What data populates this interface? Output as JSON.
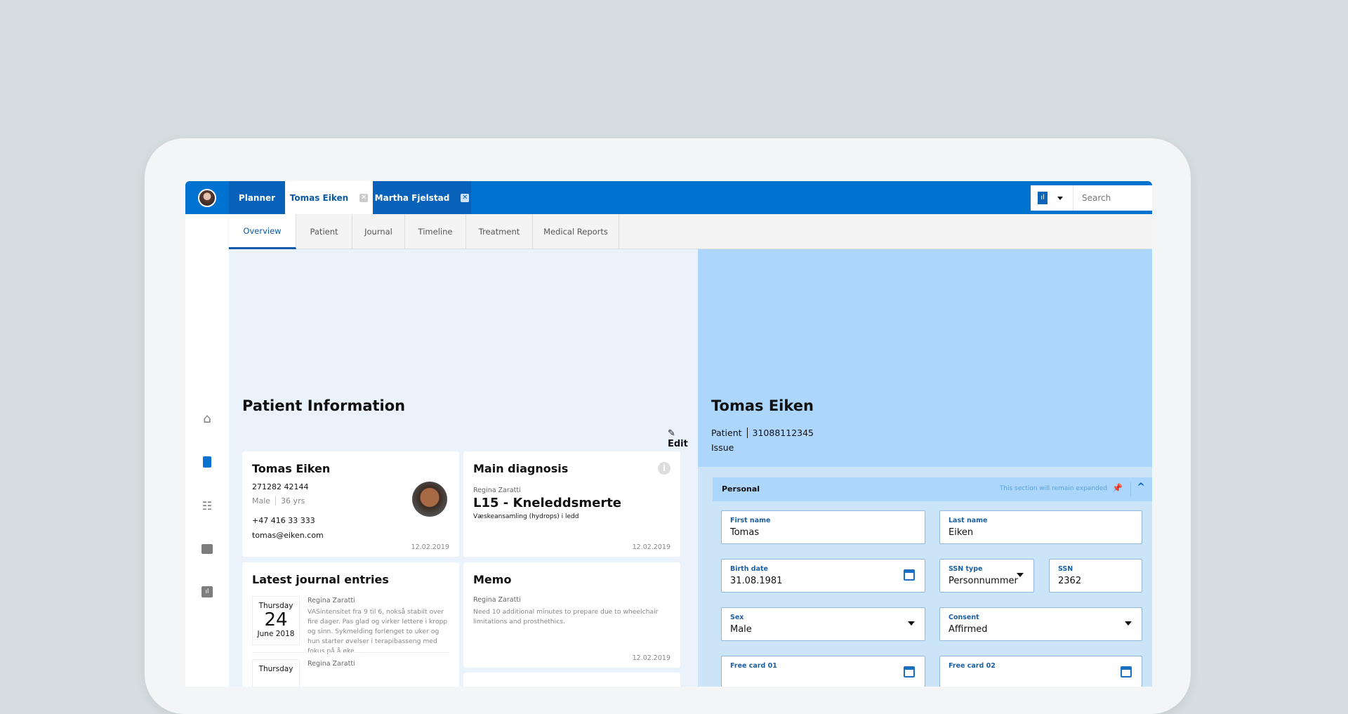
{
  "header": {
    "tabs": [
      {
        "label": "Planner"
      },
      {
        "label": "Tomas Eiken",
        "closable": true
      },
      {
        "label": "Martha Fjelstad",
        "closable": true
      }
    ],
    "search_placeholder": "Search",
    "chart_icon": "bar-chart-icon"
  },
  "subnav": {
    "tabs": [
      "Overview",
      "Patient",
      "Journal",
      "Timeline",
      "Treatment",
      "Medical Reports"
    ],
    "active": "Overview"
  },
  "sidebar": {
    "icons": [
      "home-icon",
      "journal-icon",
      "checklist-icon",
      "chat-icon",
      "bar-chart-icon"
    ],
    "active": "journal-icon"
  },
  "left": {
    "title": "Patient Information",
    "edit_label": "Edit",
    "patient_card": {
      "name": "Tomas Eiken",
      "id": "271282 42144",
      "sex": "Male",
      "age": "36 yrs",
      "phone": "+47 416 33 333",
      "email": "tomas@eiken.com",
      "date": "12.02.2019"
    },
    "diagnosis_card": {
      "title": "Main diagnosis",
      "author": "Regina Zaratti",
      "code": "L15 - Kneleddsmerte",
      "description": "Væskeansamling (hydrops) i ledd",
      "date": "12.02.2019"
    },
    "journal_card": {
      "title": "Latest journal entries",
      "entries": [
        {
          "weekday": "Thursday",
          "day": "24",
          "month_year": "June 2018",
          "author": "Regina Zaratti",
          "text": "VASintensitet fra 9 til 6, nokså stabilt over fire dager. Pas glad og virker lettere i kropp og sinn. Sykmelding forlenget to uker og hun starter øvelser i terapibasseng med fokus på å øke..."
        },
        {
          "weekday": "Thursday",
          "author": "Regina Zaratti"
        }
      ]
    },
    "memo_card": {
      "title": "Memo",
      "author": "Regina Zaratti",
      "text": "Need 10 additional minutes to prepare due to wheelchair limitations and prosthethics.",
      "date": "12.02.2019"
    }
  },
  "right": {
    "name": "Tomas Eiken",
    "role": "Patient",
    "ssn": "31088112345",
    "issue": "Issue",
    "section": {
      "title": "Personal",
      "note": "This section will remain expanded",
      "fields": {
        "first_name": {
          "label": "First name",
          "value": "Tomas"
        },
        "last_name": {
          "label": "Last name",
          "value": "Eiken"
        },
        "birth_date": {
          "label": "Birth date",
          "value": "31.08.1981"
        },
        "ssn_type": {
          "label": "SSN type",
          "value": "Personnummer"
        },
        "ssn": {
          "label": "SSN",
          "value": "2362"
        },
        "sex": {
          "label": "Sex",
          "value": "Male"
        },
        "consent": {
          "label": "Consent",
          "value": "Affirmed"
        },
        "free_card_01": {
          "label": "Free card 01"
        },
        "free_card_02": {
          "label": "Free card 02"
        }
      }
    }
  },
  "colors": {
    "brand": "#0073d1",
    "panel_light": "#eaf2fc",
    "panel_blue": "#acd6fb"
  }
}
